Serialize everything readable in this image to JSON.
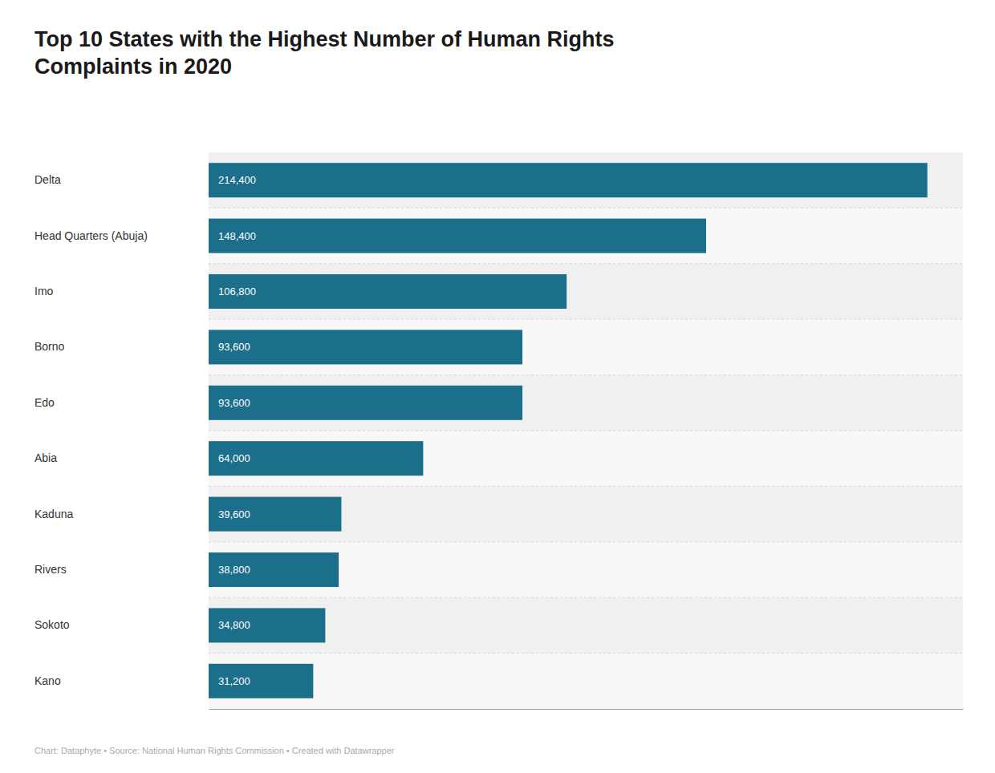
{
  "chart_data": {
    "type": "bar",
    "orientation": "horizontal",
    "title": "Top 10 States with the Highest Number of Human Rights\nComplaints in 2020",
    "caption": "Chart: Dataphyte • Source: National Human Rights Commission • Created with Datawrapper",
    "categories": [
      "Delta",
      "Head Quarters (Abuja)",
      "Imo",
      "Borno",
      "Edo",
      "Abia",
      "Kaduna",
      "Rivers",
      "Sokoto",
      "Kano"
    ],
    "values": [
      214400,
      148400,
      106800,
      93600,
      93600,
      64000,
      39600,
      38800,
      34800,
      31200
    ],
    "value_labels": [
      "214,400",
      "148,400",
      "106,800",
      "93,600",
      "93,600",
      "64,000",
      "39,600",
      "38,800",
      "34,800",
      "31,200"
    ],
    "data_labels": true,
    "tick_labels": "y",
    "color": "#1c6f8a",
    "xlim": [
      0,
      225000
    ],
    "grid": false
  }
}
